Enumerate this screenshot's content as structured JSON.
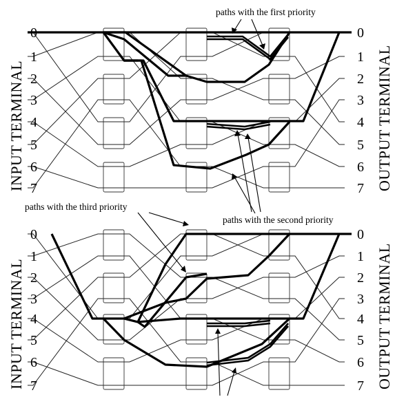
{
  "labels": {
    "input_terminal": "INPUT  TERMINAL",
    "output_terminal": "OUTPUT  TERMINAL",
    "paths_first_priority": "paths with the first priority",
    "paths_second_priority": "paths with the second priority",
    "paths_third_priority": "paths with the third priority"
  },
  "terminal_numbers": [
    "0",
    "1",
    "2",
    "3",
    "4",
    "5",
    "6",
    "7"
  ],
  "colors": {
    "line": "#000000",
    "box": "#ffffff"
  }
}
